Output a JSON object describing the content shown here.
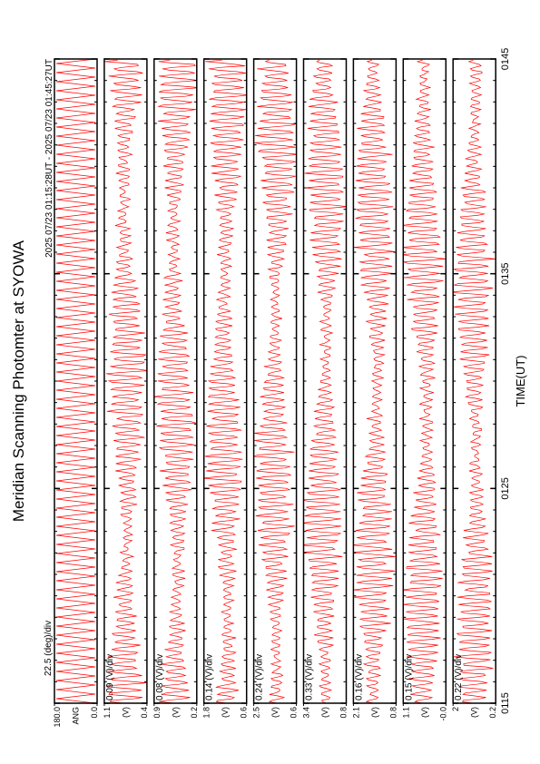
{
  "chart_data": {
    "type": "line",
    "title": "Meridian Scanning Photomter at SYOWA",
    "subtitle": "2025 07/23 01:15:28UT - 2025 07/23 01:45:27UT",
    "x_label": "TIME(UT)",
    "xlim": [
      75,
      105
    ],
    "xticks": [
      {
        "value": 75,
        "label": "0115"
      },
      {
        "value": 85,
        "label": "0125"
      },
      {
        "value": 95,
        "label": "0135"
      },
      {
        "value": 105,
        "label": "0145"
      }
    ],
    "color": "#ff0000",
    "panels": [
      {
        "scale": "22.5 (deg)/div",
        "unit": "ANG",
        "ylim": [
          0,
          180
        ],
        "yticks": [
          {
            "value": 0,
            "label": "0.0"
          },
          {
            "value": 180,
            "label": "180.0"
          }
        ]
      },
      {
        "scale": "0.09 (V)/div",
        "unit": "(V)",
        "ylim": [
          0.4,
          1.1
        ],
        "yticks": [
          0.4,
          1.1
        ]
      },
      {
        "scale": "0.08 (V)/div",
        "unit": "(V)",
        "ylim": [
          0.2,
          0.9
        ],
        "yticks": [
          0.2,
          0.9
        ]
      },
      {
        "scale": "0.14 (V)/div",
        "unit": "(V)",
        "ylim": [
          0.6,
          1.8
        ],
        "yticks": [
          0.6,
          1.8
        ]
      },
      {
        "scale": "0.24 (V)/div",
        "unit": "(V)",
        "ylim": [
          0.6,
          2.5
        ],
        "yticks": [
          0.6,
          2.5
        ]
      },
      {
        "scale": "0.33 (V)/div",
        "unit": "(V)",
        "ylim": [
          0.8,
          3.4
        ],
        "yticks": [
          0.8,
          3.4
        ]
      },
      {
        "scale": "0.16 (V)/div",
        "unit": "(V)",
        "ylim": [
          0.8,
          2.1
        ],
        "yticks": [
          0.8,
          2.1
        ]
      },
      {
        "scale": "0.15 (V)/div",
        "unit": "(V)",
        "ylim": [
          0,
          1.1
        ],
        "yticks": [
          {
            "value": 0,
            "label": "-0.0"
          },
          1.1
        ]
      },
      {
        "scale": "0.22 (V)/div",
        "unit": "(V)",
        "ylim": [
          0.2,
          2.0
        ],
        "yticks": [
          0.2,
          2.0
        ]
      }
    ]
  }
}
